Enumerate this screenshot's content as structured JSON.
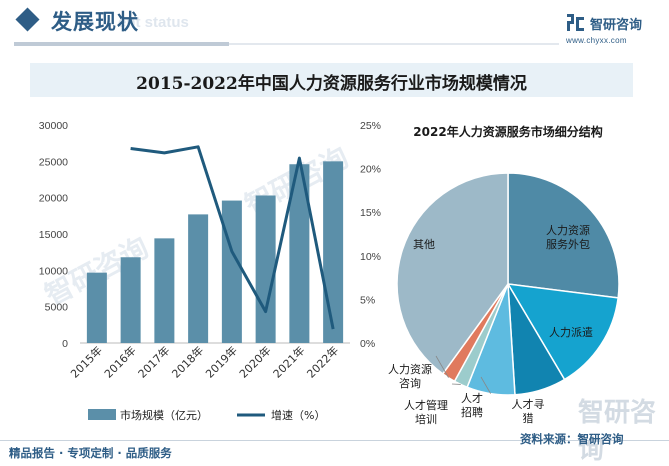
{
  "header": {
    "section_title": "发展现状",
    "section_subtitle": "ent status",
    "brand_name": "智研咨询",
    "brand_url": "www.chyxx.com",
    "watermark_text": "智研咨询"
  },
  "main_title": "2015-2022年中国人力资源服务行业市场规模情况",
  "footer": {
    "left": "精品报告 · 专项定制 · 品质服务",
    "right": "资料来源：智研咨询"
  },
  "colors": {
    "brand": "#2e5d86",
    "bar": "#5b8fa9",
    "line": "#1f5a7d",
    "title_band": "#e8f1f7"
  },
  "chart_data": [
    {
      "type": "bar+line",
      "categories": [
        "2015年",
        "2016年",
        "2017年",
        "2018年",
        "2019年",
        "2020年",
        "2021年",
        "2022年"
      ],
      "series": [
        {
          "name": "市场规模（亿元）",
          "type": "bar",
          "axis": "left",
          "values": [
            9680,
            11800,
            14400,
            17700,
            19600,
            20300,
            24600,
            25000
          ]
        },
        {
          "name": "增速（%）",
          "type": "line",
          "axis": "right",
          "values": [
            null,
            22.3,
            21.8,
            22.5,
            10.5,
            3.6,
            21.2,
            1.6
          ]
        }
      ],
      "left_axis": {
        "min": 0,
        "max": 30000,
        "ticks": [
          "0",
          "5000",
          "10000",
          "15000",
          "20000",
          "25000",
          "30000"
        ]
      },
      "right_axis": {
        "min": 0,
        "max": 25,
        "ticks": [
          "0%",
          "5%",
          "10%",
          "15%",
          "20%",
          "25%"
        ]
      },
      "legend_position": "bottom",
      "grid": false
    },
    {
      "type": "pie",
      "title": "2022年人力资源服务市场细分结构",
      "labels": [
        "人力资源服务外包",
        "人力派遣",
        "人才寻猎",
        "人才招聘",
        "人才管理培训",
        "人力资源咨询",
        "其他"
      ],
      "values": [
        27.0,
        14.5,
        7.5,
        7.0,
        2.0,
        2.0,
        40.0
      ],
      "colors": [
        "#4f8aa6",
        "#15a3cf",
        "#1184b0",
        "#5ebbe0",
        "#9ccccc",
        "#e07a5e",
        "#9db9c8"
      ]
    }
  ]
}
